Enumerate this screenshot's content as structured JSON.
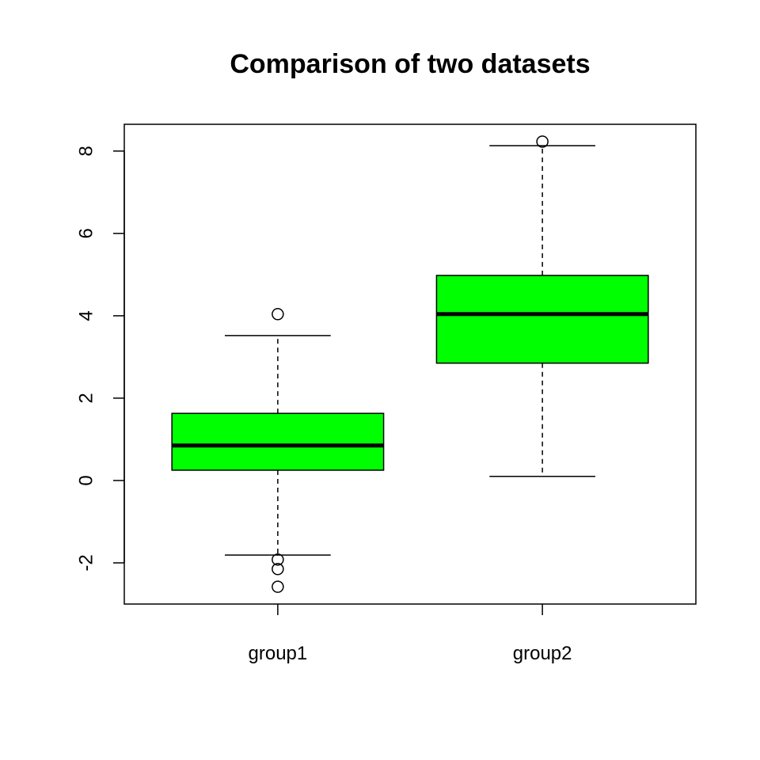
{
  "chart_data": {
    "type": "boxplot",
    "title": "Comparison of two datasets",
    "xlabel": "",
    "ylabel": "",
    "ylim": [
      -3,
      8.65
    ],
    "yticks": [
      -2,
      0,
      2,
      4,
      6,
      8
    ],
    "categories": [
      "group1",
      "group2"
    ],
    "fill_color": "#00ff00",
    "grid": false,
    "boxes": [
      {
        "name": "group1",
        "whisker_low": -1.81,
        "q1": 0.25,
        "median": 0.85,
        "q3": 1.63,
        "whisker_high": 3.52,
        "outliers": [
          4.04,
          -1.92,
          -2.15,
          -2.58
        ]
      },
      {
        "name": "group2",
        "whisker_low": 0.1,
        "q1": 2.85,
        "median": 4.04,
        "q3": 4.98,
        "whisker_high": 8.13,
        "outliers": [
          8.23
        ]
      }
    ]
  }
}
